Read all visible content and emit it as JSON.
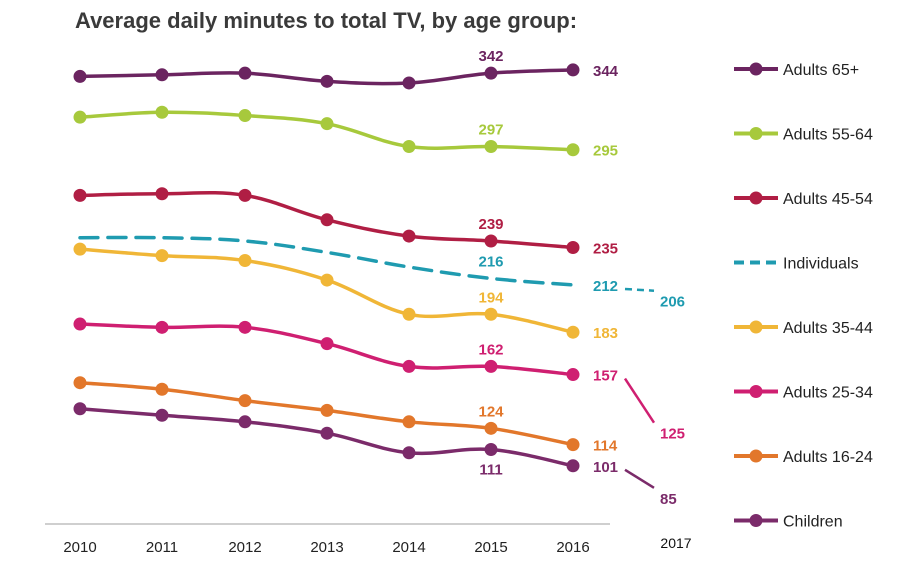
{
  "chart_data": {
    "type": "line",
    "title": "Average daily minutes to total TV, by age group:",
    "x": [
      "2010",
      "2011",
      "2012",
      "2013",
      "2014",
      "2015",
      "2016"
    ],
    "extra_x_label": "2017",
    "xlabel": "",
    "ylabel": "",
    "ylim": [
      80,
      355
    ],
    "grid": false,
    "legend_position": "right",
    "series": [
      {
        "name": "Adults 65+",
        "color": "#6b2460",
        "dashed": false,
        "values": [
          340,
          341,
          342,
          337,
          336,
          342,
          344
        ],
        "labels": [
          {
            "index": 5,
            "text": "342"
          },
          {
            "index": 6,
            "text": "344"
          }
        ]
      },
      {
        "name": "Adults 55-64",
        "color": "#a7c93c",
        "dashed": false,
        "values": [
          315,
          318,
          316,
          311,
          297,
          297,
          295
        ],
        "labels": [
          {
            "index": 5,
            "text": "297"
          },
          {
            "index": 6,
            "text": "295"
          }
        ]
      },
      {
        "name": "Adults 45-54",
        "color": "#b01e44",
        "dashed": false,
        "values": [
          267,
          268,
          267,
          252,
          242,
          239,
          235
        ],
        "labels": [
          {
            "index": 5,
            "text": "239"
          },
          {
            "index": 6,
            "text": "235"
          }
        ]
      },
      {
        "name": "Individuals",
        "color": "#1f9bb0",
        "dashed": true,
        "values": [
          241,
          241,
          239,
          232,
          223,
          216,
          212
        ],
        "labels": [
          {
            "index": 5,
            "text": "216"
          },
          {
            "index": 6,
            "text": "212"
          }
        ],
        "projection": {
          "value": 206,
          "text": "206"
        }
      },
      {
        "name": "Adults 35-44",
        "color": "#f0b637",
        "dashed": false,
        "values": [
          234,
          230,
          227,
          215,
          194,
          194,
          183
        ],
        "labels": [
          {
            "index": 5,
            "text": "194"
          },
          {
            "index": 6,
            "text": "183"
          }
        ]
      },
      {
        "name": "Adults 25-34",
        "color": "#cf1f71",
        "dashed": false,
        "values": [
          188,
          186,
          186,
          176,
          162,
          162,
          157
        ],
        "labels": [
          {
            "index": 5,
            "text": "162"
          },
          {
            "index": 6,
            "text": "157"
          }
        ],
        "projection": {
          "value": 125,
          "text": "125"
        }
      },
      {
        "name": "Adults 16-24",
        "color": "#e2772b",
        "dashed": false,
        "values": [
          152,
          148,
          141,
          135,
          128,
          124,
          114
        ],
        "labels": [
          {
            "index": 5,
            "text": "124"
          },
          {
            "index": 6,
            "text": "114"
          }
        ]
      },
      {
        "name": "Children",
        "color": "#7b2b6a",
        "dashed": false,
        "values": [
          136,
          132,
          128,
          121,
          109,
          111,
          101
        ],
        "labels": [
          {
            "index": 5,
            "text": "111"
          },
          {
            "index": 6,
            "text": "101"
          }
        ],
        "projection": {
          "value": 85,
          "text": "85"
        }
      }
    ]
  }
}
